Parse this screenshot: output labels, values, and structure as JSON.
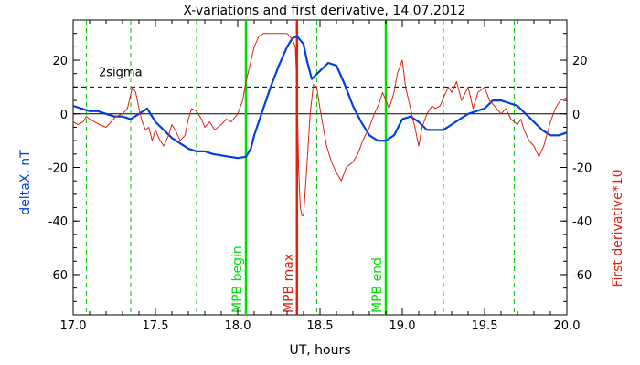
{
  "chart_data": {
    "type": "line",
    "title": "X-variations and first derivative, 14.07.2012",
    "xlabel": "UT, hours",
    "ylabel_left": "deltaX, nT",
    "ylabel_right": "First derivative*10",
    "xlim": [
      17.0,
      20.0
    ],
    "ylim": [
      -75,
      35
    ],
    "x_ticks": [
      "17.0",
      "17.5",
      "18.0",
      "18.5",
      "19.0",
      "19.5",
      "20.0"
    ],
    "y_ticks": [
      "20",
      "0",
      "-20",
      "-40",
      "-60"
    ],
    "sigma_label": "2sigma",
    "sigma_level": 10,
    "colors": {
      "deltaX": "#0040e0",
      "derivative": "#e02010",
      "mpb_line": "#00e000",
      "mpb_max_line": "#e02010",
      "dashed_green": "#00c000"
    },
    "vertical_lines": [
      {
        "x": 18.05,
        "label": "MPB begin",
        "color": "#00e000"
      },
      {
        "x": 18.36,
        "label": "MPB max",
        "color": "#e02010"
      },
      {
        "x": 18.9,
        "label": "MPB end",
        "color": "#00e000"
      }
    ],
    "dashed_vlines": [
      17.08,
      17.35,
      17.75,
      18.48,
      19.25,
      19.68
    ],
    "series": [
      {
        "name": "deltaX, nT",
        "x": [
          17.0,
          17.05,
          17.1,
          17.15,
          17.2,
          17.25,
          17.3,
          17.35,
          17.4,
          17.45,
          17.5,
          17.55,
          17.6,
          17.65,
          17.7,
          17.75,
          17.8,
          17.85,
          17.9,
          17.95,
          18.0,
          18.05,
          18.08,
          18.1,
          18.15,
          18.2,
          18.25,
          18.3,
          18.33,
          18.36,
          18.4,
          18.42,
          18.45,
          18.5,
          18.55,
          18.6,
          18.65,
          18.7,
          18.75,
          18.8,
          18.85,
          18.9,
          18.95,
          19.0,
          19.05,
          19.1,
          19.15,
          19.2,
          19.25,
          19.3,
          19.35,
          19.4,
          19.45,
          19.5,
          19.55,
          19.6,
          19.65,
          19.7,
          19.75,
          19.8,
          19.85,
          19.9,
          19.95,
          20.0
        ],
        "values": [
          3,
          2,
          1,
          1,
          0,
          -1,
          -1,
          -2,
          0,
          2,
          -3,
          -6,
          -9,
          -11,
          -13,
          -14,
          -14,
          -15,
          -15.5,
          -16,
          -16.5,
          -16,
          -13,
          -8,
          1,
          10,
          18,
          25,
          28,
          29,
          26,
          20,
          13,
          16,
          19,
          18,
          11,
          3,
          -3,
          -8,
          -10,
          -10,
          -8,
          -2,
          -1,
          -3,
          -6,
          -6,
          -6,
          -4,
          -2,
          0,
          1,
          2,
          5,
          5,
          4,
          3,
          0,
          -3,
          -6,
          -8,
          -8,
          -7
        ]
      },
      {
        "name": "First derivative*10",
        "x": [
          17.0,
          17.03,
          17.06,
          17.08,
          17.1,
          17.13,
          17.16,
          17.2,
          17.23,
          17.26,
          17.3,
          17.33,
          17.36,
          17.38,
          17.4,
          17.42,
          17.44,
          17.46,
          17.48,
          17.5,
          17.52,
          17.55,
          17.58,
          17.6,
          17.62,
          17.65,
          17.68,
          17.7,
          17.72,
          17.75,
          17.78,
          17.8,
          17.83,
          17.86,
          17.9,
          17.93,
          17.96,
          18.0,
          18.03,
          18.05,
          18.07,
          18.1,
          18.13,
          18.16,
          18.2,
          18.25,
          18.3,
          18.33,
          18.35,
          18.36,
          18.37,
          18.38,
          18.39,
          18.4,
          18.42,
          18.44,
          18.46,
          18.48,
          18.5,
          18.52,
          18.54,
          18.57,
          18.6,
          18.63,
          18.66,
          18.7,
          18.73,
          18.76,
          18.8,
          18.83,
          18.86,
          18.88,
          18.9,
          18.92,
          18.95,
          18.97,
          19.0,
          19.02,
          19.05,
          19.08,
          19.1,
          19.12,
          19.15,
          19.18,
          19.2,
          19.23,
          19.25,
          19.28,
          19.3,
          19.33,
          19.36,
          19.4,
          19.43,
          19.46,
          19.5,
          19.53,
          19.56,
          19.6,
          19.63,
          19.66,
          19.7,
          19.72,
          19.74,
          19.77,
          19.8,
          19.83,
          19.86,
          19.9,
          19.93,
          19.96,
          20.0
        ],
        "values": [
          -3,
          -4,
          -3,
          -1,
          -2,
          -3,
          -4,
          -5,
          -3,
          -1,
          0,
          2,
          10,
          8,
          2,
          -3,
          -6,
          -5,
          -10,
          -6,
          -9,
          -12,
          -8,
          -4,
          -6,
          -10,
          -8,
          -2,
          2,
          1,
          -2,
          -5,
          -3,
          -6,
          -4,
          -2,
          -3,
          0,
          5,
          12,
          17,
          25,
          29,
          30,
          30,
          30,
          30,
          28,
          25,
          10,
          -20,
          -35,
          -38,
          -38,
          -20,
          0,
          11,
          10,
          2,
          -5,
          -12,
          -18,
          -22,
          -25,
          -20,
          -18,
          -15,
          -10,
          -5,
          0,
          4,
          8,
          5,
          2,
          8,
          15,
          20,
          10,
          2,
          -6,
          -12,
          -5,
          0,
          3,
          2,
          3,
          6,
          10,
          8,
          12,
          5,
          10,
          2,
          8,
          10,
          5,
          3,
          0,
          2,
          -2,
          -4,
          -2,
          -6,
          -10,
          -12,
          -16,
          -12,
          -3,
          2,
          5,
          6
        ]
      }
    ]
  }
}
